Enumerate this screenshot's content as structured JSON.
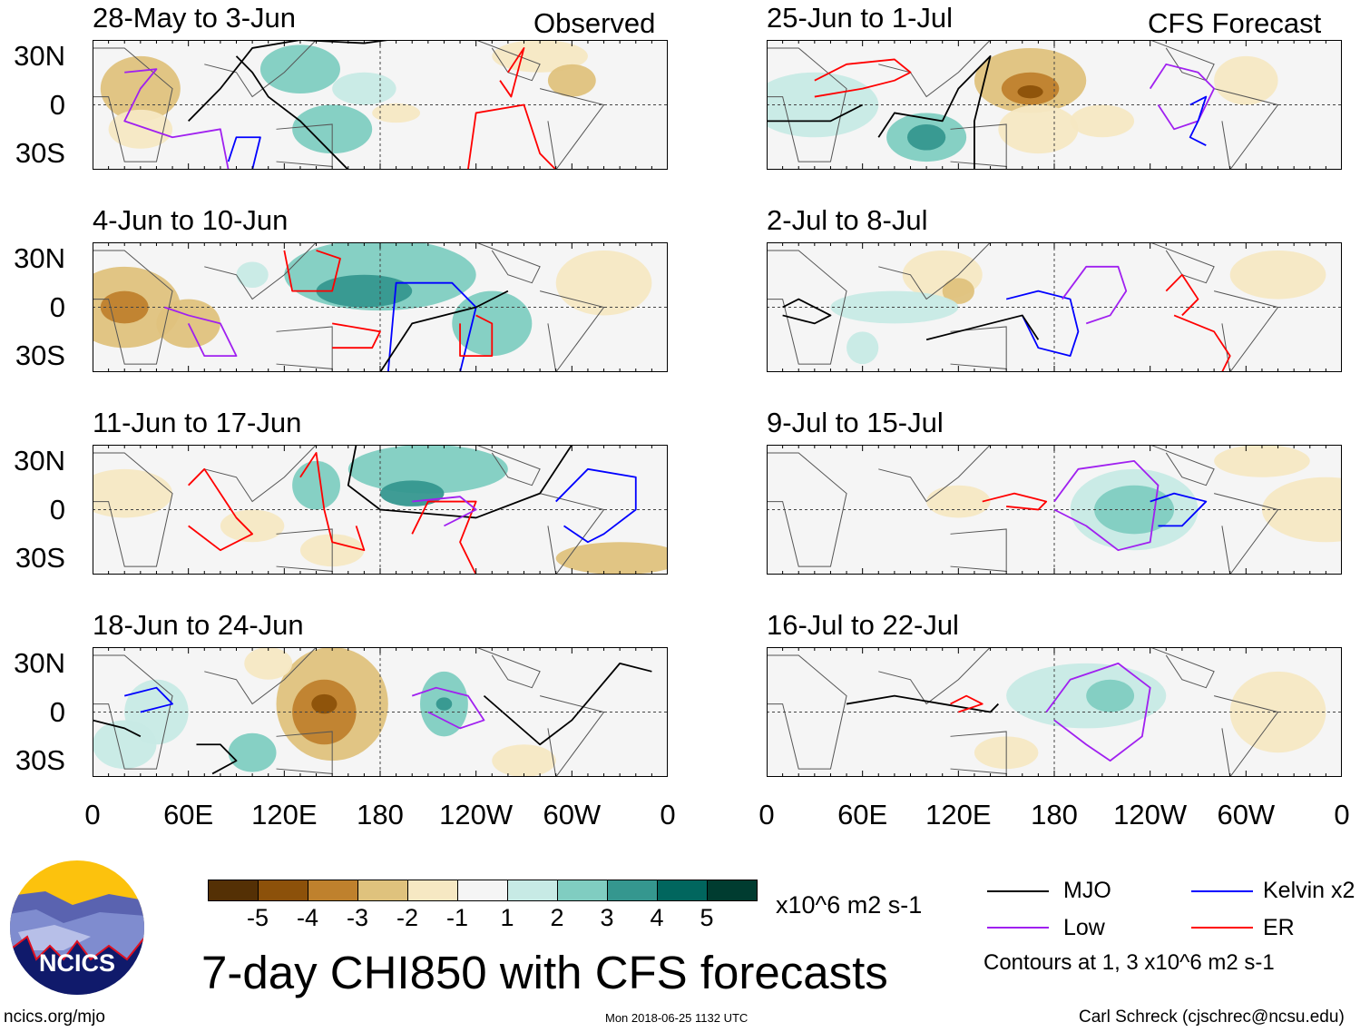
{
  "figure": {
    "title": "7-day CHI850 with CFS forecasts",
    "units": "x10^6 m2 s-1",
    "contour_note": "Contours at 1, 3 x10^6 m2 s-1",
    "website": "ncics.org/mjo",
    "timestamp": "Mon 2018-06-25 1132 UTC",
    "author": "Carl Schreck (cjschrec@ncsu.edu)",
    "logo_text": "NCICS"
  },
  "columns": {
    "left_label": "Observed",
    "right_label": "CFS Forecast"
  },
  "panels_left": [
    {
      "title": "28-May to 3-Jun"
    },
    {
      "title": "4-Jun to 10-Jun"
    },
    {
      "title": "11-Jun to 17-Jun"
    },
    {
      "title": "18-Jun to 24-Jun"
    }
  ],
  "panels_right": [
    {
      "title": "25-Jun to 1-Jul"
    },
    {
      "title": "2-Jul to 8-Jul"
    },
    {
      "title": "9-Jul to 15-Jul"
    },
    {
      "title": "16-Jul to 22-Jul"
    }
  ],
  "y_ticks": [
    "30N",
    "0",
    "30S"
  ],
  "x_ticks": [
    "0",
    "60E",
    "120E",
    "180",
    "120W",
    "60W",
    "0"
  ],
  "colorbar": {
    "labels": [
      "-5",
      "-4",
      "-3",
      "-2",
      "-1",
      "1",
      "2",
      "3",
      "4",
      "5"
    ],
    "colors": [
      "#543005",
      "#8c510a",
      "#bf812d",
      "#dfc27d",
      "#f6e8c3",
      "#f5f5f5",
      "#c7eae5",
      "#80cdc1",
      "#35978f",
      "#01665e",
      "#003c30"
    ]
  },
  "legend": [
    {
      "label": "MJO",
      "color": "#000000"
    },
    {
      "label": "Kelvin x2",
      "color": "#0000ff"
    },
    {
      "label": "Low",
      "color": "#a020f0"
    },
    {
      "label": "ER",
      "color": "#ff0000"
    }
  ]
}
